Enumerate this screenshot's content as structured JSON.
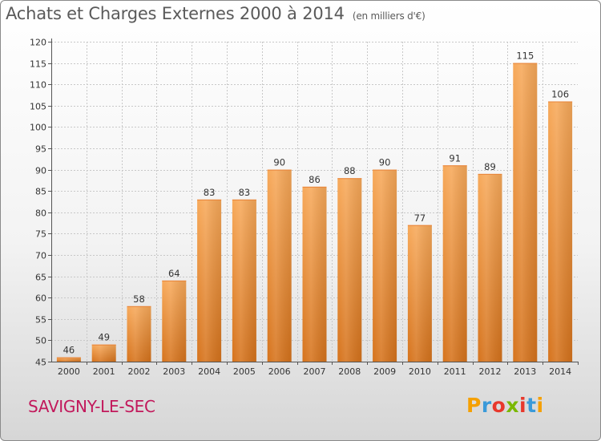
{
  "header": {
    "title": "Achats et Charges Externes 2000 à 2014",
    "subtitle": "(en milliers d'€)"
  },
  "footer": {
    "commune": "SAVIGNY-LE-SEC",
    "logo": [
      "P",
      "r",
      "o",
      "x",
      "i",
      "t",
      "i"
    ],
    "logo_colors": [
      "#f5a000",
      "#3a9ad9",
      "#e8382c",
      "#7ab800",
      "#e8382c",
      "#3a9ad9",
      "#f5a000"
    ]
  },
  "colors": {
    "bar_light": "#f7a95a",
    "bar_dark": "#d6731c",
    "grid": "#c8c8c8",
    "axis": "#555555"
  },
  "chart_data": {
    "type": "bar",
    "title": "Achats et Charges Externes 2000 à 2014",
    "subtitle": "(en milliers d'€)",
    "categories": [
      "2000",
      "2001",
      "2002",
      "2003",
      "2004",
      "2005",
      "2006",
      "2007",
      "2008",
      "2009",
      "2010",
      "2011",
      "2012",
      "2013",
      "2014"
    ],
    "values": [
      46,
      49,
      58,
      64,
      83,
      83,
      90,
      86,
      88,
      90,
      77,
      91,
      89,
      115,
      106
    ],
    "data_labels": [
      "46",
      "49",
      "58",
      "64",
      "83",
      "83",
      "90",
      "86",
      "88",
      "90",
      "77",
      "91",
      "89",
      "115",
      "106"
    ],
    "ylim": [
      45,
      120
    ],
    "yticks": [
      45,
      50,
      55,
      60,
      65,
      70,
      75,
      80,
      85,
      90,
      95,
      100,
      105,
      110,
      115,
      120
    ],
    "grid": true,
    "xlabel": "",
    "ylabel": ""
  }
}
